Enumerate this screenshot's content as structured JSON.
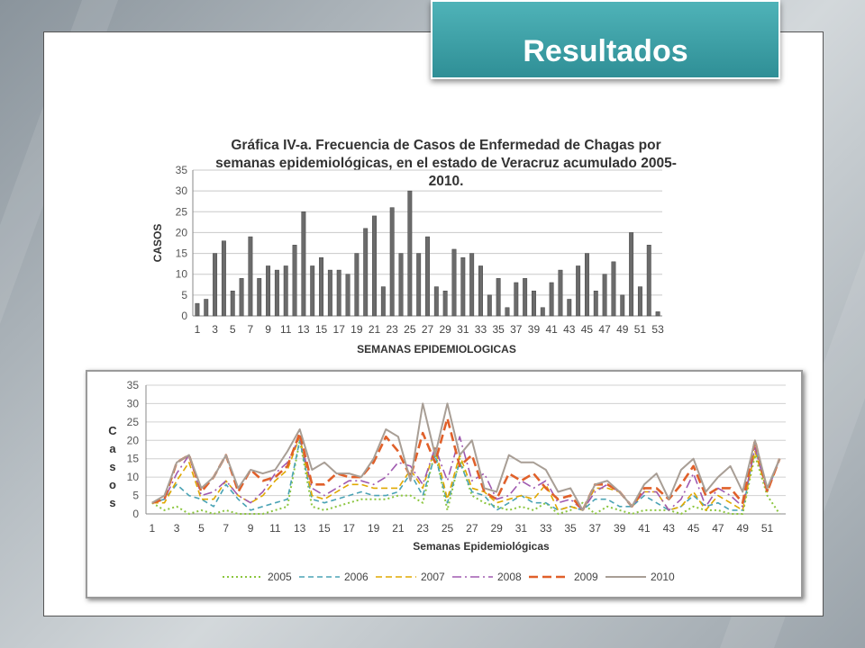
{
  "slide": {
    "title": "Resultados"
  },
  "colors": {
    "accent": "#3a9ea5",
    "bar": "#6b6b6b",
    "s2005": "#8cc63f",
    "s2006": "#4aa3b5",
    "s2007": "#e0a800",
    "s2008": "#a05ab0",
    "s2009": "#e0602a",
    "s2010": "#a89e95"
  },
  "chart_data": [
    {
      "type": "bar",
      "title": "Gráfica IV-a. Frecuencia de Casos de Enfermedad de Chagas por semanas epidemiológicas, en el estado de Veracruz acumulado 2005-2010.",
      "xlabel": "SEMANAS EPIDEMIOLOGICAS",
      "ylabel": "CASOS",
      "ylim": [
        0,
        35
      ],
      "yticks": [
        0,
        5,
        10,
        15,
        20,
        25,
        30,
        35
      ],
      "xtick_labels": [
        "1",
        "3",
        "5",
        "7",
        "9",
        "11",
        "13",
        "15",
        "17",
        "19",
        "21",
        "23",
        "25",
        "27",
        "29",
        "31",
        "33",
        "35",
        "37",
        "39",
        "41",
        "43",
        "45",
        "47",
        "49",
        "51",
        "53"
      ],
      "grid": true,
      "categories": [
        1,
        2,
        3,
        4,
        5,
        6,
        7,
        8,
        9,
        10,
        11,
        12,
        13,
        14,
        15,
        16,
        17,
        18,
        19,
        20,
        21,
        22,
        23,
        24,
        25,
        26,
        27,
        28,
        29,
        30,
        31,
        32,
        33,
        34,
        35,
        36,
        37,
        38,
        39,
        40,
        41,
        42,
        43,
        44,
        45,
        46,
        47,
        48,
        49,
        50,
        51,
        52,
        53
      ],
      "values": [
        3,
        4,
        15,
        18,
        6,
        9,
        19,
        9,
        12,
        11,
        12,
        17,
        25,
        12,
        14,
        11,
        11,
        10,
        15,
        21,
        24,
        7,
        26,
        15,
        30,
        15,
        19,
        7,
        6,
        16,
        14,
        15,
        12,
        5,
        9,
        2,
        8,
        9,
        6,
        2,
        8,
        11,
        4,
        12,
        15,
        6,
        10,
        13,
        5,
        20,
        7,
        17,
        1
      ]
    },
    {
      "type": "line",
      "title": "",
      "xlabel": "Semanas Epidemiológicas",
      "ylabel": "Casos",
      "ylim": [
        0,
        35
      ],
      "yticks": [
        0,
        5,
        10,
        15,
        20,
        25,
        30,
        35
      ],
      "xtick_labels": [
        "1",
        "3",
        "5",
        "7",
        "9",
        "11",
        "13",
        "15",
        "17",
        "19",
        "21",
        "23",
        "25",
        "27",
        "29",
        "31",
        "33",
        "35",
        "37",
        "39",
        "41",
        "43",
        "45",
        "47",
        "49",
        "51"
      ],
      "grid": true,
      "legend": "bottom",
      "x": [
        1,
        2,
        3,
        4,
        5,
        6,
        7,
        8,
        9,
        10,
        11,
        12,
        13,
        14,
        15,
        16,
        17,
        18,
        19,
        20,
        21,
        22,
        23,
        24,
        25,
        26,
        27,
        28,
        29,
        30,
        31,
        32,
        33,
        34,
        35,
        36,
        37,
        38,
        39,
        40,
        41,
        42,
        43,
        44,
        45,
        46,
        47,
        48,
        49,
        50,
        51,
        52
      ],
      "series": [
        {
          "name": "2005",
          "values": [
            3,
            1,
            2,
            0,
            1,
            0,
            1,
            0,
            0,
            0,
            1,
            2,
            20,
            2,
            1,
            2,
            3,
            4,
            4,
            4,
            5,
            5,
            3,
            17,
            1,
            15,
            5,
            3,
            2,
            1,
            2,
            1,
            3,
            0,
            1,
            3,
            0,
            2,
            1,
            0,
            1,
            1,
            1,
            0,
            2,
            1,
            1,
            0,
            0,
            16,
            5,
            0
          ]
        },
        {
          "name": "2006",
          "values": [
            3,
            4,
            8,
            5,
            4,
            2,
            8,
            4,
            1,
            2,
            3,
            4,
            20,
            4,
            3,
            4,
            5,
            6,
            5,
            5,
            6,
            11,
            5,
            16,
            3,
            14,
            6,
            5,
            1,
            3,
            5,
            3,
            3,
            1,
            2,
            1,
            4,
            4,
            2,
            2,
            5,
            3,
            1,
            2,
            5,
            2,
            3,
            1,
            1,
            18,
            6,
            15
          ]
        },
        {
          "name": "2007",
          "values": [
            3,
            3,
            9,
            14,
            4,
            4,
            9,
            5,
            3,
            5,
            9,
            12,
            21,
            5,
            4,
            6,
            8,
            8,
            7,
            7,
            7,
            12,
            7,
            18,
            4,
            16,
            7,
            6,
            3,
            4,
            5,
            4,
            8,
            1,
            2,
            1,
            7,
            7,
            6,
            2,
            6,
            6,
            1,
            2,
            6,
            1,
            5,
            3,
            1,
            17,
            6,
            15
          ]
        },
        {
          "name": "2008",
          "values": [
            3,
            4,
            11,
            16,
            5,
            6,
            9,
            5,
            3,
            6,
            11,
            14,
            21,
            7,
            5,
            7,
            9,
            9,
            8,
            10,
            14,
            13,
            8,
            18,
            9,
            21,
            9,
            11,
            4,
            5,
            9,
            7,
            9,
            3,
            4,
            1,
            6,
            8,
            6,
            2,
            6,
            6,
            1,
            4,
            11,
            2,
            7,
            5,
            2,
            18,
            6,
            15
          ]
        },
        {
          "name": "2009",
          "values": [
            3,
            4,
            14,
            16,
            6,
            10,
            16,
            6,
            12,
            9,
            10,
            13,
            22,
            8,
            8,
            11,
            10,
            10,
            14,
            21,
            17,
            10,
            22,
            14,
            26,
            13,
            16,
            6,
            4,
            11,
            9,
            11,
            7,
            4,
            5,
            1,
            8,
            8,
            6,
            2,
            7,
            7,
            4,
            8,
            13,
            5,
            7,
            7,
            3,
            20,
            6,
            15
          ]
        },
        {
          "name": "2010",
          "values": [
            3,
            5,
            14,
            16,
            7,
            10,
            16,
            7,
            12,
            11,
            12,
            17,
            23,
            12,
            14,
            11,
            11,
            10,
            15,
            23,
            21,
            9,
            30,
            16,
            30,
            16,
            20,
            7,
            6,
            16,
            14,
            14,
            12,
            6,
            7,
            1,
            8,
            9,
            6,
            2,
            8,
            11,
            4,
            12,
            15,
            6,
            10,
            13,
            6,
            20,
            7,
            15
          ]
        }
      ]
    }
  ]
}
